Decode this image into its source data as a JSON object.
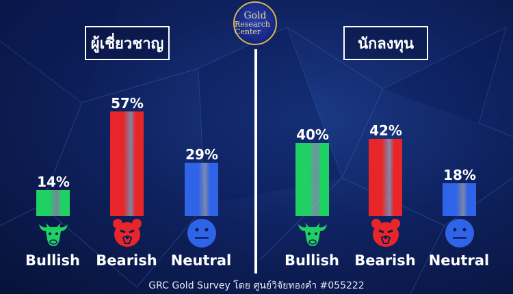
{
  "logo": {
    "line1": "Gold",
    "line2": "Research Center"
  },
  "footer": "GRC Gold Survey โดย ศูนย์วิจัยทองคำ #055222",
  "colors": {
    "bullish": "#1fd162",
    "bearish": "#e8262a",
    "neutral": "#2f63e8"
  },
  "chart_data": [
    {
      "type": "bar",
      "title": "ผู้เชี่ยวชาญ",
      "categories": [
        "Bullish",
        "Bearish",
        "Neutral"
      ],
      "icons": [
        "bull-icon",
        "bear-icon",
        "neutral-face-icon"
      ],
      "values": [
        14,
        57,
        29
      ],
      "labels": [
        "14%",
        "57%",
        "29%"
      ],
      "ylim": [
        0,
        100
      ]
    },
    {
      "type": "bar",
      "title": "นักลงทุน",
      "categories": [
        "Bullish",
        "Bearish",
        "Neutral"
      ],
      "icons": [
        "bull-icon",
        "bear-icon",
        "neutral-face-icon"
      ],
      "values": [
        40,
        42,
        18
      ],
      "labels": [
        "40%",
        "42%",
        "18%"
      ],
      "ylim": [
        0,
        100
      ]
    }
  ]
}
